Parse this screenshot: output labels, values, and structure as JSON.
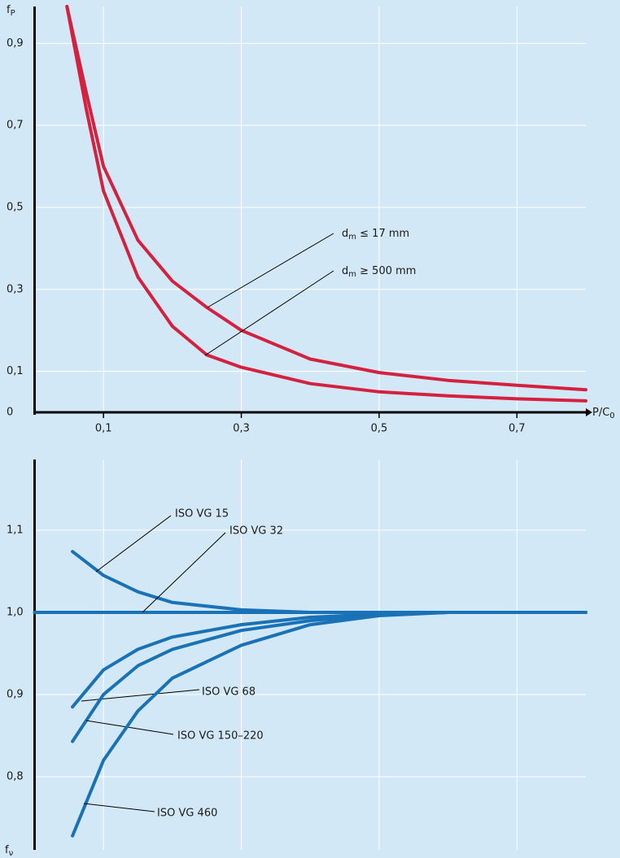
{
  "chart_data": [
    {
      "type": "line",
      "y_label": {
        "base": "f",
        "sub": "P"
      },
      "x_label": {
        "base": "P/C",
        "sub": "0"
      },
      "xlim": [
        0,
        0.8
      ],
      "xticks": [
        {
          "value": 0.1,
          "label": "0,1"
        },
        {
          "value": 0.3,
          "label": "0,3"
        },
        {
          "value": 0.5,
          "label": "0,5"
        },
        {
          "value": 0.7,
          "label": "0,7"
        }
      ],
      "ylim": [
        0,
        0.99
      ],
      "yticks": [
        0,
        {
          "value": 0.1,
          "label": "0,1"
        },
        {
          "value": 0.3,
          "label": "0,3"
        },
        {
          "value": 0.5,
          "label": "0,5"
        },
        {
          "value": 0.7,
          "label": "0,7"
        },
        {
          "value": 0.9,
          "label": "0,9"
        }
      ],
      "grid": true,
      "x": [
        0.047,
        0.075,
        0.1,
        0.15,
        0.2,
        0.25,
        0.3,
        0.4,
        0.5,
        0.6,
        0.7,
        0.8
      ],
      "series": [
        {
          "name": {
            "base": "d",
            "sub": "m",
            "rest": " ≤ 17 mm"
          },
          "color": "#d4213f",
          "values": [
            0.99,
            0.78,
            0.6,
            0.42,
            0.32,
            0.256,
            0.2,
            0.13,
            0.097,
            0.078,
            0.066,
            0.055
          ]
        },
        {
          "name": {
            "base": "d",
            "sub": "m",
            "rest": " ≥ 500 mm"
          },
          "color": "#d4213f",
          "values": [
            0.99,
            0.74,
            0.54,
            0.33,
            0.21,
            0.14,
            0.11,
            0.07,
            0.05,
            0.04,
            0.033,
            0.028
          ]
        }
      ]
    },
    {
      "type": "line",
      "y_label": {
        "base": "f",
        "sub": "ν"
      },
      "xlim": [
        0,
        0.8
      ],
      "ylim": [
        0.711,
        1.186
      ],
      "yticks": [
        {
          "value": 0.8,
          "label": "0,8"
        },
        {
          "value": 0.9,
          "label": "0,9"
        },
        {
          "value": 1.0,
          "label": "1,0"
        },
        {
          "value": 1.1,
          "label": "1,1"
        }
      ],
      "grid": true,
      "series": [
        {
          "name": "ISO VG 15",
          "color": "#1a72b6",
          "x": [
            0.055,
            0.1,
            0.15,
            0.2,
            0.3,
            0.4,
            0.8
          ],
          "values": [
            1.074,
            1.045,
            1.025,
            1.012,
            1.003,
            1.0,
            1.0
          ]
        },
        {
          "name": "ISO VG 32",
          "color": "#1a72b6",
          "x": [
            0,
            0.8
          ],
          "values": [
            1.0,
            1.0
          ]
        },
        {
          "name": "ISO VG 68",
          "color": "#1a72b6",
          "x": [
            0.055,
            0.1,
            0.15,
            0.2,
            0.3,
            0.4,
            0.5,
            0.6,
            0.8
          ],
          "values": [
            0.885,
            0.93,
            0.955,
            0.97,
            0.985,
            0.994,
            0.998,
            1.0,
            1.0
          ]
        },
        {
          "name": "ISO VG 150–220",
          "color": "#1a72b6",
          "x": [
            0.055,
            0.1,
            0.15,
            0.2,
            0.3,
            0.4,
            0.5,
            0.6,
            0.8
          ],
          "values": [
            0.843,
            0.9,
            0.935,
            0.955,
            0.978,
            0.99,
            0.997,
            1.0,
            1.0
          ]
        },
        {
          "name": "ISO VG 460",
          "color": "#1a72b6",
          "x": [
            0.055,
            0.1,
            0.15,
            0.2,
            0.3,
            0.4,
            0.5,
            0.6,
            0.8
          ],
          "values": [
            0.728,
            0.82,
            0.88,
            0.92,
            0.96,
            0.985,
            0.996,
            1.0,
            1.0
          ]
        }
      ]
    }
  ]
}
